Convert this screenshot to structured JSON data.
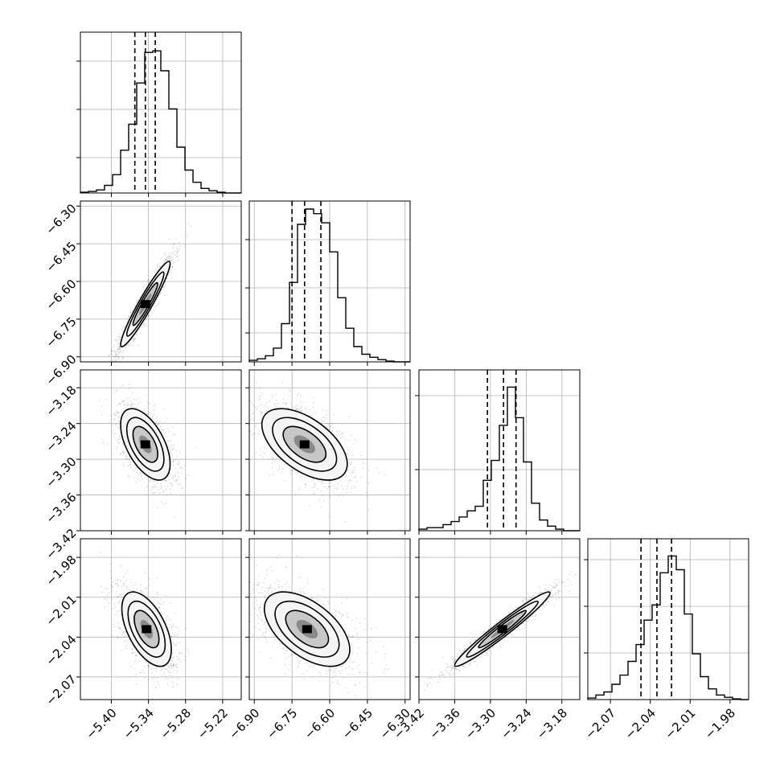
{
  "chart_data": {
    "type": "corner",
    "params": [
      {
        "id": "p0",
        "range": [
          -5.45,
          -5.19
        ],
        "ticks": [
          -5.4,
          -5.34,
          -5.28,
          -5.22
        ],
        "tick_labels": [
          "−5.40",
          "−5.34",
          "−5.28",
          "−5.22"
        ],
        "quantiles": [
          -5.362,
          -5.345,
          -5.329
        ]
      },
      {
        "id": "p1",
        "range": [
          -6.92,
          -6.28
        ],
        "ticks": [
          -6.9,
          -6.75,
          -6.6,
          -6.45,
          -6.3
        ],
        "tick_labels": [
          "−6.90",
          "−6.75",
          "−6.60",
          "−6.45",
          "−6.30"
        ],
        "quantiles": [
          -6.75,
          -6.7,
          -6.635
        ]
      },
      {
        "id": "p2",
        "range": [
          -3.42,
          -3.15
        ],
        "ticks": [
          -3.42,
          -3.36,
          -3.3,
          -3.24,
          -3.18
        ],
        "tick_labels": [
          "−3.42",
          "−3.36",
          "−3.30",
          "−3.24",
          "−3.18"
        ],
        "quantiles": [
          -3.305,
          -3.278,
          -3.257
        ]
      },
      {
        "id": "p3",
        "range": [
          -2.087,
          -1.966
        ],
        "ticks": [
          -2.07,
          -2.04,
          -2.01,
          -1.98
        ],
        "tick_labels": [
          "−2.07",
          "−2.04",
          "−2.01",
          "−1.98"
        ],
        "quantiles": [
          -2.047,
          -2.035,
          -2.024
        ]
      }
    ],
    "histograms": [
      [
        0.005,
        0.01,
        0.02,
        0.05,
        0.12,
        0.28,
        0.45,
        0.72,
        0.92,
        0.93,
        0.8,
        0.55,
        0.3,
        0.15,
        0.07,
        0.03,
        0.015,
        0.005,
        0,
        0
      ],
      [
        0.01,
        0.02,
        0.04,
        0.09,
        0.25,
        0.52,
        0.9,
        1.0,
        0.97,
        0.91,
        0.72,
        0.42,
        0.22,
        0.1,
        0.05,
        0.03,
        0.015,
        0.005,
        0,
        0
      ],
      [
        0.01,
        0.02,
        0.02,
        0.04,
        0.06,
        0.09,
        0.13,
        0.16,
        0.33,
        0.46,
        0.69,
        0.94,
        0.74,
        0.45,
        0.18,
        0.07,
        0.03,
        0.01,
        0,
        0
      ],
      [
        0.01,
        0.03,
        0.05,
        0.1,
        0.16,
        0.25,
        0.36,
        0.52,
        0.62,
        0.83,
        0.94,
        0.85,
        0.56,
        0.3,
        0.15,
        0.07,
        0.03,
        0.015,
        0.005,
        0
      ]
    ],
    "hist_yticks": [
      [
        0.22,
        0.52,
        0.82
      ],
      [
        0.18,
        0.46,
        0.76
      ],
      [
        0.38,
        0.84
      ],
      [
        0.29,
        0.58,
        0.87
      ]
    ],
    "pairs": [
      {
        "row": 1,
        "col": 0,
        "mean": [
          -5.345,
          -6.69
        ],
        "sd": [
          0.02,
          0.085
        ],
        "corr": 0.95
      },
      {
        "row": 2,
        "col": 0,
        "mean": [
          -5.345,
          -3.275
        ],
        "sd": [
          0.02,
          0.03
        ],
        "corr": -0.55
      },
      {
        "row": 2,
        "col": 1,
        "mean": [
          -6.7,
          -3.275
        ],
        "sd": [
          0.085,
          0.03
        ],
        "corr": -0.55
      },
      {
        "row": 3,
        "col": 0,
        "mean": [
          -5.343,
          -2.034
        ],
        "sd": [
          0.02,
          0.014
        ],
        "corr": -0.55
      },
      {
        "row": 3,
        "col": 1,
        "mean": [
          -6.69,
          -2.034
        ],
        "sd": [
          0.085,
          0.014
        ],
        "corr": -0.55
      },
      {
        "row": 3,
        "col": 2,
        "mean": [
          -3.28,
          -2.034
        ],
        "sd": [
          0.04,
          0.014
        ],
        "corr": 0.97
      }
    ],
    "contour_levels_sigma": [
      0.5,
      1.0,
      1.5,
      2.0
    ],
    "grid": true,
    "quantile_line_style": "dashed"
  }
}
